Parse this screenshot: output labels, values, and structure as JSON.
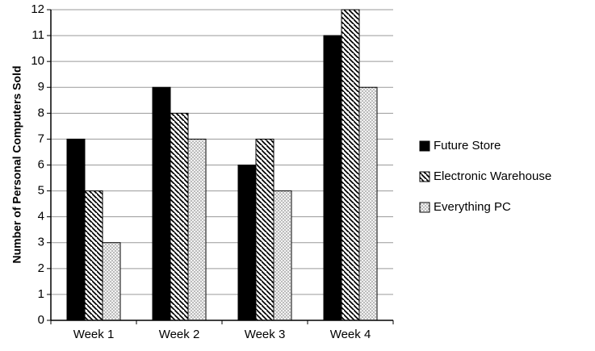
{
  "chart_data": {
    "type": "bar",
    "categories": [
      "Week 1",
      "Week 2",
      "Week 3",
      "Week 4"
    ],
    "series": [
      {
        "name": "Future Store",
        "values": [
          7,
          9,
          6,
          11
        ],
        "fill": "solid-black"
      },
      {
        "name": "Electronic Warehouse",
        "values": [
          5,
          8,
          7,
          12
        ],
        "fill": "diagonal-stripes"
      },
      {
        "name": "Everything PC",
        "values": [
          3,
          7,
          5,
          9
        ],
        "fill": "dots"
      }
    ],
    "title": "",
    "xlabel": "",
    "ylabel": "Number of Personal Computers Sold",
    "ylim": [
      0,
      12
    ],
    "yticks": [
      "0",
      "1",
      "2",
      "3",
      "4",
      "5",
      "6",
      "7",
      "8",
      "9",
      "10",
      "11",
      "12"
    ],
    "grid": true,
    "legend_position": "right"
  }
}
